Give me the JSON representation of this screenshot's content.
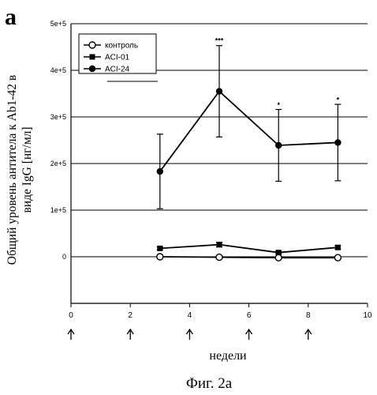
{
  "panel_label": "a",
  "caption": "Фиг. 2a",
  "chart_data": {
    "type": "line",
    "ylabel_lines": [
      "Общий уровень антитела к Ab1-42 в",
      "виде IgG [нг/мл]"
    ],
    "xlabel": "недели",
    "xlim": [
      0,
      10
    ],
    "ylim": [
      -100000,
      500000
    ],
    "x_ticks": [
      0,
      2,
      4,
      6,
      8,
      10
    ],
    "y_ticks": [
      0,
      100000,
      200000,
      300000,
      400000,
      500000
    ],
    "y_tick_labels": [
      "0",
      "1e+5",
      "2e+5",
      "3e+5",
      "4e+5",
      "5e+5"
    ],
    "grid": true,
    "legend_position": "top-left",
    "series": [
      {
        "name": "контроль",
        "marker": "open-circle",
        "x": [
          3,
          5,
          7,
          9
        ],
        "y": [
          0,
          -1000,
          -2000,
          -2000
        ],
        "err": [
          2000,
          2000,
          2000,
          2000
        ]
      },
      {
        "name": "ACI-01",
        "marker": "filled-square",
        "x": [
          3,
          5,
          7,
          9
        ],
        "y": [
          18000,
          26000,
          9000,
          20000
        ],
        "err": [
          3000,
          5000,
          3000,
          4000
        ]
      },
      {
        "name": "ACI-24",
        "marker": "filled-circle",
        "x": [
          3,
          5,
          7,
          9
        ],
        "y": [
          183000,
          355000,
          239000,
          245000
        ],
        "err": [
          80000,
          98000,
          77000,
          82000
        ]
      }
    ],
    "annotations": [
      {
        "x": 5,
        "y": 455000,
        "text": "***"
      },
      {
        "x": 7,
        "y": 317000,
        "text": "*"
      },
      {
        "x": 9,
        "y": 328000,
        "text": "*"
      }
    ],
    "immunization_weeks": [
      0,
      2,
      4,
      6,
      8
    ]
  }
}
